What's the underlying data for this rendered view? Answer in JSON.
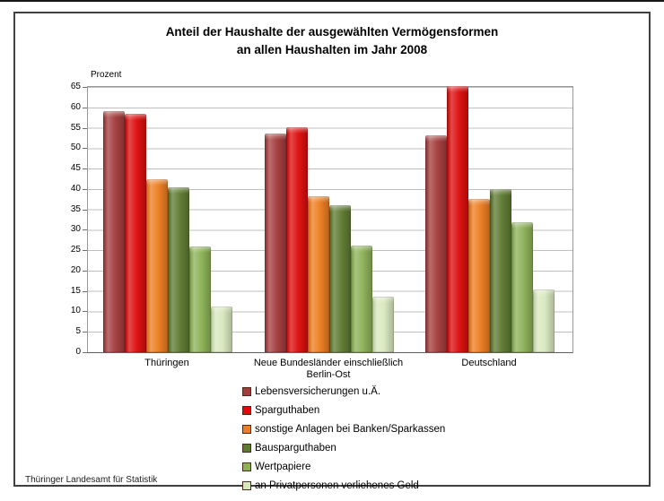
{
  "chart_data": {
    "type": "bar",
    "title": "Anteil der Haushalte der ausgewählten Vermögensformen an allen Haushalten im Jahr 2008",
    "title_lines": [
      "Anteil der Haushalte der ausgewählten Vermögensformen",
      "an allen Haushalten im Jahr 2008"
    ],
    "ylabel": "Prozent",
    "xlabel": "",
    "ylim": [
      0,
      65
    ],
    "yticks": [
      0,
      5,
      10,
      15,
      20,
      25,
      30,
      35,
      40,
      45,
      50,
      55,
      60,
      65
    ],
    "grid": true,
    "legend_position": "bottom",
    "categories": [
      "Thüringen",
      "Neue Bundesländer einschließlich\nBerlin-Ost",
      "Deutschland"
    ],
    "series": [
      {
        "name": "Lebensversicherungen u.Ä.",
        "color": "#A43C3C",
        "values": [
          59.0,
          53.5,
          53.2
        ]
      },
      {
        "name": "Sparguthaben",
        "color": "#DD0C0C",
        "values": [
          58.4,
          55.2,
          65.3
        ]
      },
      {
        "name": "sonstige Anlagen bei Banken/Sparkassen",
        "color": "#EE7D20",
        "values": [
          42.4,
          38.3,
          37.6
        ]
      },
      {
        "name": "Bausparguthaben",
        "color": "#5E7A30",
        "values": [
          40.5,
          36.0,
          40.0
        ]
      },
      {
        "name": "Wertpapiere",
        "color": "#8CB256",
        "values": [
          26.0,
          26.1,
          31.9
        ]
      },
      {
        "name": "an Privatpersonen verliehenes Geld",
        "color": "#D8E8BE",
        "values": [
          11.3,
          13.6,
          15.3
        ]
      }
    ]
  },
  "footer": {
    "source": "Thüringer Landesamt für Statistik"
  }
}
